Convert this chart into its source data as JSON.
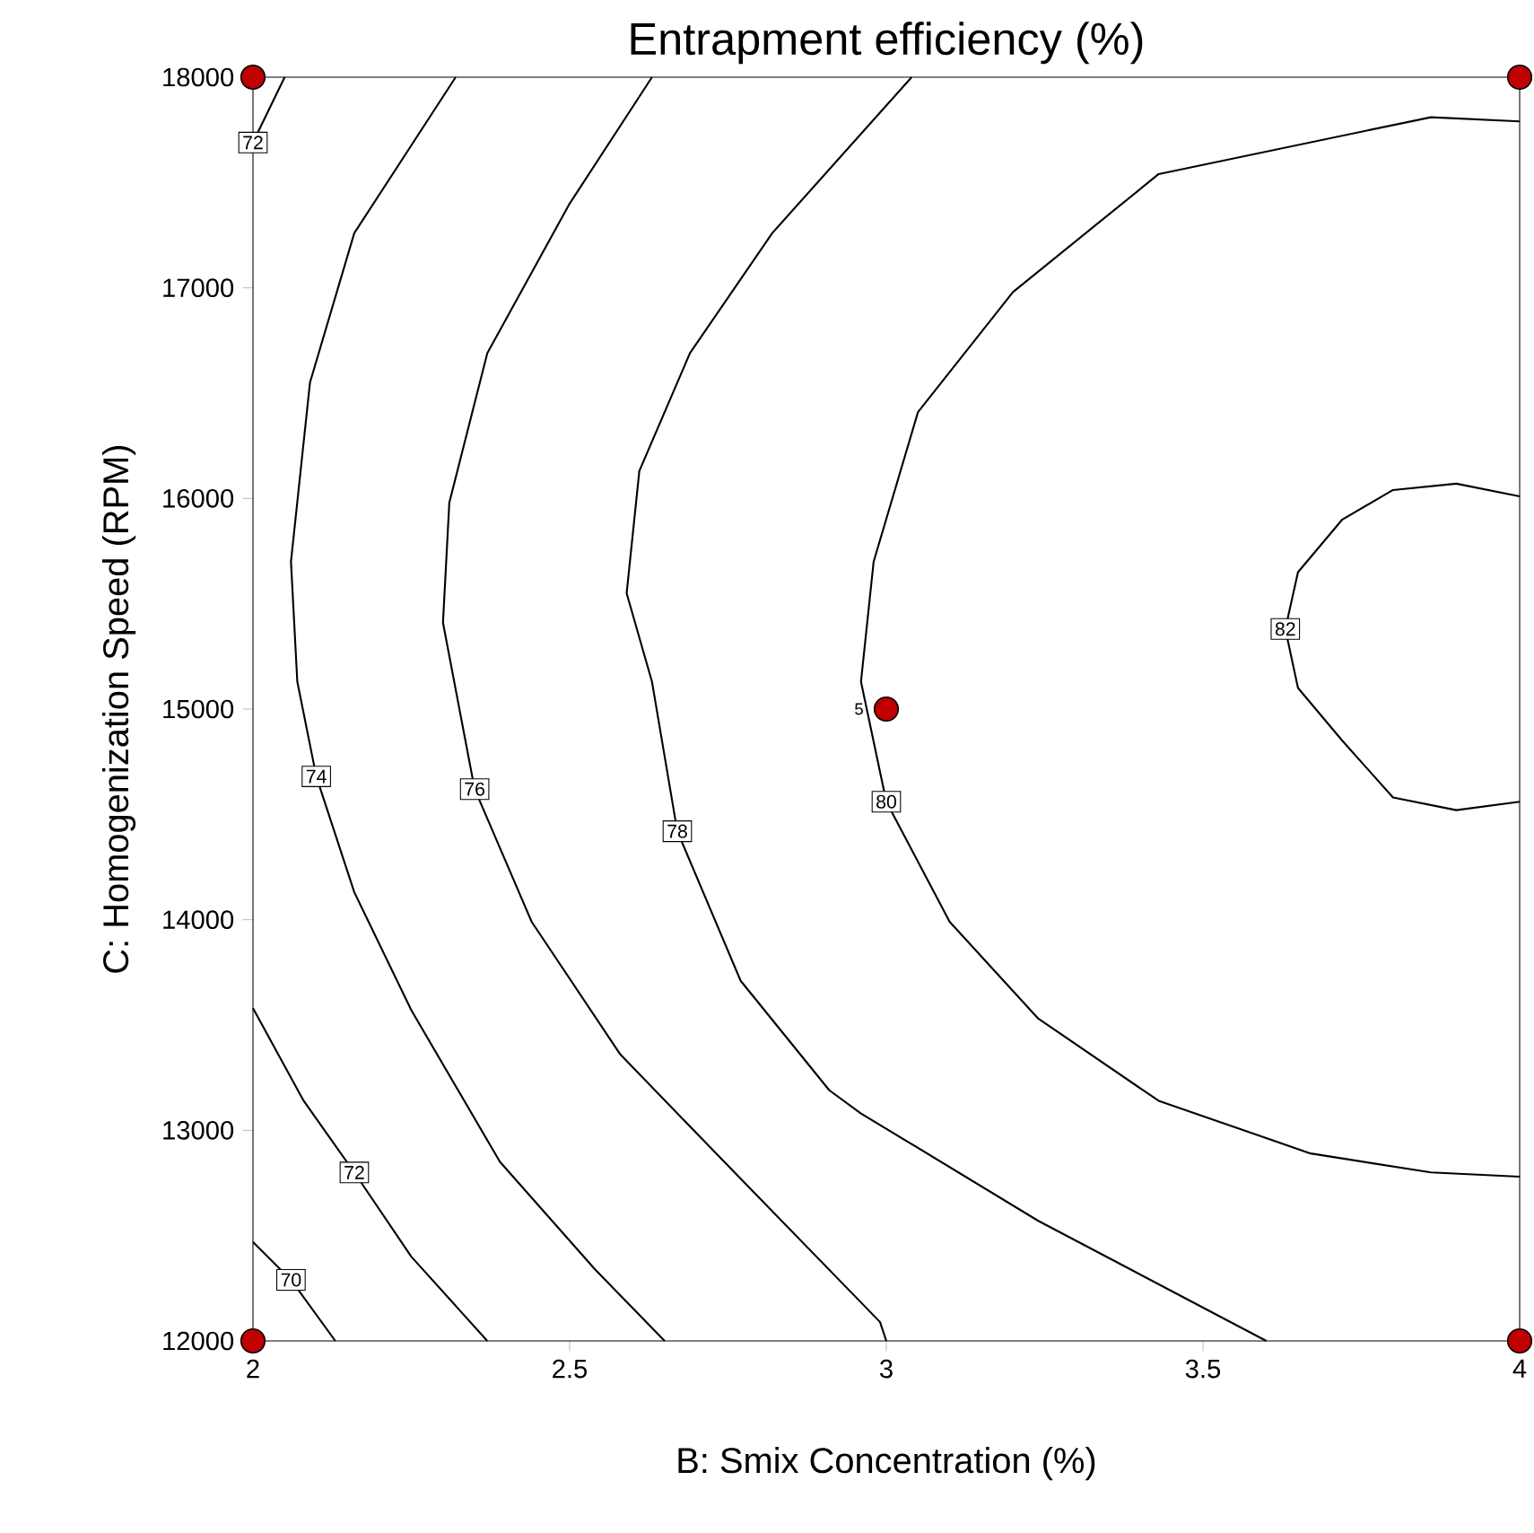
{
  "chart_data": {
    "type": "line",
    "title": "Entrapment efficiency (%)",
    "xlabel": "B: Smix Concentration (%)",
    "ylabel": "C: Homogenization Speed (RPM)",
    "xlim": [
      2,
      4
    ],
    "ylim": [
      12000,
      18000
    ],
    "xticks": [
      2,
      2.5,
      3,
      3.5,
      4
    ],
    "yticks": [
      12000,
      13000,
      14000,
      15000,
      16000,
      17000,
      18000
    ],
    "marker": "none",
    "line_style": "solid",
    "series": [
      {
        "name": "70",
        "color": "#000000",
        "x": [
          2.0,
          2.06,
          2.13
        ],
        "values": [
          12470,
          12290,
          12000
        ]
      },
      {
        "name": "72",
        "color": "#000000",
        "x": [
          2.05,
          2.0,
          null,
          2.0,
          2.08,
          2.16,
          2.25,
          2.37
        ],
        "values": [
          18000,
          17690,
          null,
          13580,
          13140,
          12800,
          12400,
          12000
        ]
      },
      {
        "name": "74",
        "color": "#000000",
        "x": [
          2.32,
          2.16,
          2.09,
          2.06,
          2.07,
          2.1,
          2.16,
          2.25,
          2.39,
          2.54,
          2.65
        ],
        "values": [
          18000,
          17260,
          16550,
          15700,
          15130,
          14680,
          14130,
          13570,
          12850,
          12340,
          12000
        ]
      },
      {
        "name": "76",
        "color": "#000000",
        "x": [
          2.63,
          2.5,
          2.37,
          2.31,
          2.3,
          2.35,
          2.44,
          2.58,
          2.77,
          2.99,
          3.0
        ],
        "values": [
          18000,
          17400,
          16690,
          15980,
          15410,
          14620,
          13990,
          13360,
          12770,
          12090,
          12000
        ]
      },
      {
        "name": "78",
        "color": "#000000",
        "x": [
          3.04,
          2.82,
          2.69,
          2.61,
          2.59,
          2.63,
          2.67,
          2.77,
          2.91,
          2.96,
          3.24,
          3.6
        ],
        "values": [
          18000,
          17260,
          16690,
          16130,
          15550,
          15130,
          14420,
          13710,
          13190,
          13080,
          12570,
          12000
        ]
      },
      {
        "name": "80",
        "color": "#000000",
        "x": [
          4.0,
          3.86,
          3.43,
          3.2,
          3.05,
          2.98,
          2.96,
          3.0,
          3.1,
          3.24,
          3.43,
          3.67,
          3.86,
          4.0
        ],
        "values": [
          17790,
          17810,
          17540,
          16980,
          16410,
          15700,
          15130,
          14560,
          13990,
          13530,
          13140,
          12890,
          12800,
          12780
        ]
      },
      {
        "name": "82",
        "color": "#000000",
        "x": [
          4.0,
          3.9,
          3.8,
          3.72,
          3.65,
          3.63,
          3.65,
          3.72,
          3.8,
          3.9,
          4.0
        ],
        "values": [
          16010,
          16070,
          16040,
          15900,
          15650,
          15380,
          15100,
          14850,
          14580,
          14520,
          14560
        ]
      },
      {
        "type": "scatter",
        "marker": "circle",
        "color": "#c00000",
        "x": [
          2,
          4,
          2,
          4,
          3
        ],
        "values": [
          18000,
          18000,
          12000,
          12000,
          15000
        ]
      }
    ],
    "annotations": [
      {
        "text": "5",
        "x": 3,
        "y": 15000
      }
    ]
  }
}
